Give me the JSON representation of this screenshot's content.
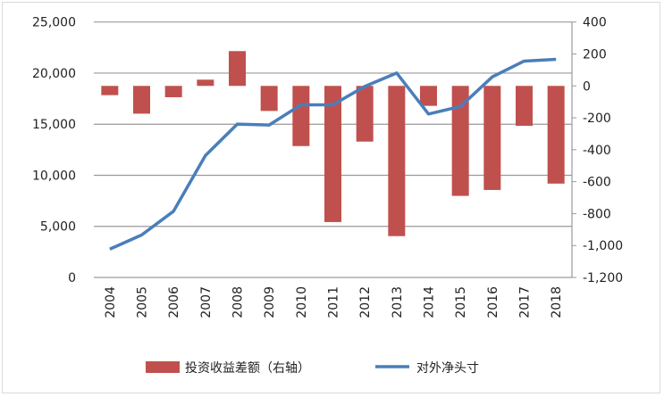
{
  "chart_data": {
    "type": "bar+line",
    "categories": [
      "2004",
      "2005",
      "2006",
      "2007",
      "2008",
      "2009",
      "2010",
      "2011",
      "2012",
      "2013",
      "2014",
      "2015",
      "2016",
      "2017",
      "2018"
    ],
    "series": [
      {
        "name": "投资收益差额（右轴）",
        "type": "bar",
        "axis": "right",
        "color": "#c0504d",
        "values": [
          -58,
          -174,
          -71,
          39,
          218,
          -157,
          -377,
          -853,
          -349,
          -941,
          -125,
          -689,
          -652,
          -250,
          -612
        ]
      },
      {
        "name": "对外净头寸",
        "type": "line",
        "axis": "left",
        "color": "#4a7ebb",
        "values": [
          2770,
          4160,
          6480,
          11930,
          15010,
          14920,
          16900,
          16900,
          18700,
          20010,
          16000,
          16730,
          19630,
          21180,
          21350
        ]
      }
    ],
    "left_axis": {
      "range": [
        0,
        25000
      ],
      "ticks": [
        "0",
        "5,000",
        "10,000",
        "15,000",
        "20,000",
        "25,000"
      ]
    },
    "right_axis": {
      "range": [
        -1200,
        400
      ],
      "ticks": [
        "-1,200",
        "-1,000",
        "-800",
        "-600",
        "-400",
        "-200",
        "0",
        "200",
        "400"
      ]
    },
    "grid": true,
    "legend_placement": "bottom"
  }
}
